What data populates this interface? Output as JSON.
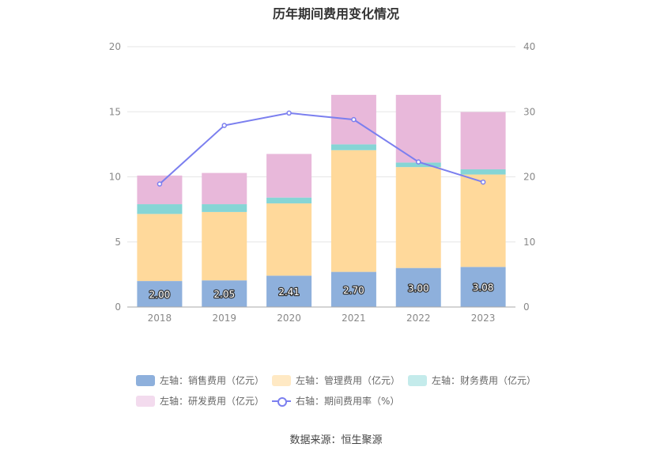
{
  "chart_data": {
    "type": "bar",
    "title": "历年期间费用变化情况",
    "categories": [
      "2018",
      "2019",
      "2020",
      "2021",
      "2022",
      "2023"
    ],
    "left_axis": {
      "min": 0,
      "max": 20,
      "ticks": [
        "0",
        "5",
        "10",
        "15",
        "20"
      ]
    },
    "right_axis": {
      "min": 0,
      "max": 40,
      "ticks": [
        "0",
        "10",
        "20",
        "30",
        "40"
      ]
    },
    "grid": true,
    "stacked": true,
    "series": [
      {
        "name": "左轴：销售费用（亿元）",
        "axis": "left",
        "color": "#8eb0dc",
        "values": [
          2.0,
          2.05,
          2.41,
          2.7,
          3.0,
          3.08
        ],
        "labels": [
          "2.00",
          "2.05",
          "2.41",
          "2.70",
          "3.00",
          "3.08"
        ]
      },
      {
        "name": "左轴：管理费用（亿元）",
        "axis": "left",
        "color": "#ffd99b",
        "values": [
          5.15,
          5.25,
          5.55,
          9.35,
          7.75,
          7.1
        ]
      },
      {
        "name": "左轴：财务费用（亿元）",
        "axis": "left",
        "color": "#86d5d5",
        "values": [
          0.75,
          0.6,
          0.45,
          0.45,
          0.35,
          0.4
        ]
      },
      {
        "name": "左轴：研发费用（亿元）",
        "axis": "left",
        "color": "#e8b8da",
        "values": [
          2.2,
          2.4,
          3.35,
          3.8,
          5.2,
          4.4
        ]
      },
      {
        "name": "右轴：期间费用率（%）",
        "axis": "right",
        "type": "line",
        "color": "#7b7fef",
        "values": [
          18.9,
          27.9,
          29.8,
          28.8,
          22.3,
          19.2
        ]
      }
    ],
    "legend_position": "bottom"
  },
  "legend": {
    "items": [
      {
        "label": "左轴：销售费用（亿元）",
        "color": "#8eb0dc",
        "kind": "box"
      },
      {
        "label": "左轴：管理费用（亿元）",
        "color": "#ffe9c4",
        "kind": "box"
      },
      {
        "label": "左轴：财务费用（亿元）",
        "color": "#c4ebeb",
        "kind": "box"
      },
      {
        "label": "左轴：研发费用（亿元）",
        "color": "#f3dbee",
        "kind": "box"
      },
      {
        "label": "右轴：期间费用率（%）",
        "color": "#7b7fef",
        "kind": "line"
      }
    ]
  },
  "source": "数据来源：恒生聚源"
}
